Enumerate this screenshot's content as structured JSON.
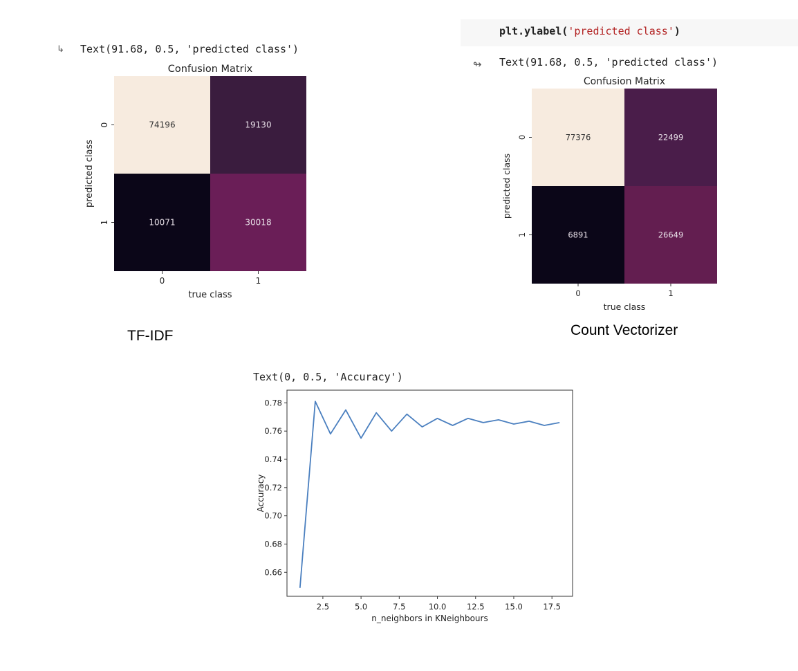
{
  "panel_left": {
    "output_text": "Text(91.68, 0.5, 'predicted class')",
    "caption": "TF-IDF"
  },
  "panel_right": {
    "code_prefix": "plt.ylabel(",
    "code_string": "'predicted class'",
    "code_suffix": ")",
    "output_text": "Text(91.68, 0.5, 'predicted class')",
    "caption": "Count Vectorizer"
  },
  "panel_bottom": {
    "output_text": "Text(0, 0.5, 'Accuracy')"
  },
  "colors": {
    "heat_cream": "#f7ebdf",
    "heat_dark_purple": "#3a1c3e",
    "heat_black": "#0b0618",
    "heat_magenta": "#6a1e57",
    "heat_dark_purple_2": "#4a1d4a",
    "heat_magenta_2": "#631e50",
    "line_blue": "#4a7fbf"
  },
  "chart_data": [
    {
      "type": "heatmap",
      "title": "Confusion Matrix",
      "xlabel": "true class",
      "ylabel": "predicted class",
      "x_ticks": [
        "0",
        "1"
      ],
      "y_ticks": [
        "0",
        "1"
      ],
      "cells": [
        [
          74196,
          19130
        ],
        [
          10071,
          30018
        ]
      ],
      "cell_labels": [
        [
          "74196",
          "19130"
        ],
        [
          "10071",
          "30018"
        ]
      ]
    },
    {
      "type": "heatmap",
      "title": "Confusion Matrix",
      "xlabel": "true class",
      "ylabel": "predicted class",
      "x_ticks": [
        "0",
        "1"
      ],
      "y_ticks": [
        "0",
        "1"
      ],
      "cells": [
        [
          77376,
          22499
        ],
        [
          6891,
          26649
        ]
      ],
      "cell_labels": [
        [
          "77376",
          "22499"
        ],
        [
          "6891",
          "26649"
        ]
      ]
    },
    {
      "type": "line",
      "title": "",
      "xlabel": "n_neighbors in KNeighbours",
      "ylabel": "Accuracy",
      "xlim": [
        0.15,
        18.85
      ],
      "ylim": [
        0.643,
        0.789
      ],
      "x_ticks": [
        2.5,
        5.0,
        7.5,
        10.0,
        12.5,
        15.0,
        17.5
      ],
      "x_tick_labels": [
        "2.5",
        "5.0",
        "7.5",
        "10.0",
        "12.5",
        "15.0",
        "17.5"
      ],
      "y_ticks": [
        0.66,
        0.68,
        0.7,
        0.72,
        0.74,
        0.76,
        0.78
      ],
      "y_tick_labels": [
        "0.66",
        "0.68",
        "0.70",
        "0.72",
        "0.74",
        "0.76",
        "0.78"
      ],
      "grid": false,
      "x": [
        1,
        2,
        3,
        4,
        5,
        6,
        7,
        8,
        9,
        10,
        11,
        12,
        13,
        14,
        15,
        16,
        17,
        18
      ],
      "y": [
        0.649,
        0.781,
        0.758,
        0.775,
        0.755,
        0.773,
        0.76,
        0.772,
        0.763,
        0.769,
        0.764,
        0.769,
        0.766,
        0.768,
        0.765,
        0.767,
        0.764,
        0.766
      ]
    }
  ]
}
